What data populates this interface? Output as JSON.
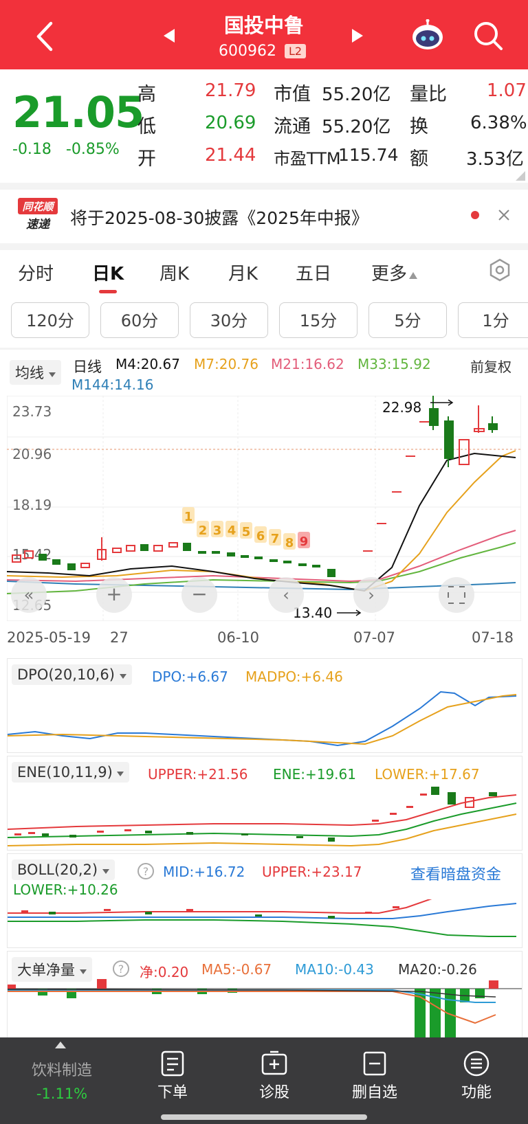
{
  "header": {
    "title": "国投中鲁",
    "code": "600962",
    "badge": "L2"
  },
  "quote": {
    "price": "21.05",
    "change": "-0.18",
    "change_pct": "-0.85%",
    "high_label": "高",
    "high": "21.79",
    "low_label": "低",
    "low": "20.69",
    "open_label": "开",
    "open": "21.44",
    "mktcap_label": "市值",
    "mktcap": "55.20亿",
    "float_label": "流通",
    "float": "55.20亿",
    "pe_label": "市盈TTM",
    "pe": "115.74",
    "volratio_label": "量比",
    "volratio": "1.07",
    "turnover_label": "换",
    "turnover": "6.38%",
    "amount_label": "额",
    "amount": "3.53亿"
  },
  "notice": {
    "logo_top": "同花顺",
    "logo_bottom": "速递",
    "text": "将于2025-08-30披露《2025年中报》"
  },
  "tabs": [
    "分时",
    "日K",
    "周K",
    "月K",
    "五日",
    "更多"
  ],
  "periods": [
    "120分",
    "60分",
    "30分",
    "15分",
    "5分",
    "1分"
  ],
  "kline": {
    "selector": "均线",
    "line_label": "日线",
    "m4": "M4:20.67",
    "m7": "M7:20.76",
    "m21": "M21:16.62",
    "m33": "M33:15.92",
    "m144": "M144:14.16",
    "adjust": "前复权",
    "y_labels": [
      "23.73",
      "20.96",
      "18.19",
      "15.42",
      "12.65"
    ],
    "x_labels": [
      "2025-05-19",
      "27",
      "06-10",
      "07-07",
      "07-18"
    ],
    "max_label": "22.98",
    "min_label": "13.40",
    "nine_turn": [
      "1",
      "2",
      "3",
      "4",
      "5",
      "6",
      "7",
      "8",
      "9"
    ],
    "colors": {
      "m4": "#111111",
      "m7": "#e6a11c",
      "m21": "#e35d7a",
      "m33": "#62b53e",
      "m144": "#2e7fb6"
    }
  },
  "dpo": {
    "selector": "DPO(20,10,6)",
    "dpo": "DPO:+6.67",
    "madpo": "MADPO:+6.46"
  },
  "ene": {
    "selector": "ENE(10,11,9)",
    "upper": "UPPER:+21.56",
    "ene": "ENE:+19.61",
    "lower": "LOWER:+17.67"
  },
  "boll": {
    "selector": "BOLL(20,2)",
    "mid": "MID:+16.72",
    "upper": "UPPER:+23.17",
    "lower": "LOWER:+10.26",
    "link": "查看暗盘资金"
  },
  "bigorder": {
    "selector": "大单净量",
    "net": "净:0.20",
    "ma5": "MA5:-0.67",
    "ma10": "MA10:-0.43",
    "ma20": "MA20:-0.26"
  },
  "bottom_nav": {
    "sector": "饮料制造",
    "sector_chg": "-1.11%",
    "items": [
      "下单",
      "诊股",
      "删自选",
      "功能"
    ]
  }
}
